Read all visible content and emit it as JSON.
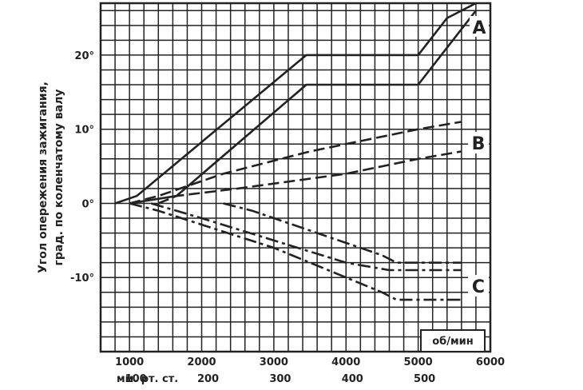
{
  "chart_data": {
    "type": "line",
    "ylabel": [
      "Угол опережения зажигания,",
      "град. по коленчатому валу"
    ],
    "xlim": [
      600,
      6000
    ],
    "ylim": [
      -20,
      27
    ],
    "x_unit": "об/мин",
    "x_ticks": [
      "1000",
      "2000",
      "3000",
      "4000",
      "5000",
      "6000"
    ],
    "x_tick_values": [
      1000,
      2000,
      3000,
      4000,
      5000,
      6000
    ],
    "x2_prefix": "мм. рт. ст.",
    "x2_ticks": [
      "100",
      "200",
      "300",
      "400",
      "500"
    ],
    "x2_tick_values": [
      1000,
      2000,
      3000,
      4000,
      5000
    ],
    "y_ticks": [
      "20°",
      "10°",
      "0°",
      "-10°"
    ],
    "y_tick_values": [
      20,
      10,
      0,
      -10
    ],
    "grid": true,
    "series": [
      {
        "name": "A",
        "style": "solid",
        "x": [
          800,
          1100,
          3450,
          5000,
          5400,
          5800
        ],
        "y": [
          0,
          1,
          20,
          20,
          25,
          27
        ]
      },
      {
        "name": "A",
        "style": "solid",
        "x": [
          1000,
          1650,
          3450,
          5000,
          5800
        ],
        "y": [
          0,
          1,
          16,
          16,
          26
        ]
      },
      {
        "name": "B",
        "style": "dashed",
        "x": [
          1000,
          1400,
          2300,
          3500,
          5000,
          5600
        ],
        "y": [
          0,
          1,
          4,
          7,
          10,
          11
        ]
      },
      {
        "name": "B",
        "style": "dashed",
        "x": [
          1400,
          1650,
          2500,
          4000,
          5000,
          5600
        ],
        "y": [
          0,
          1,
          2,
          4,
          6,
          7
        ]
      },
      {
        "name": "C",
        "style": "dash-dot",
        "x": [
          1300,
          2000,
          4000,
          4600,
          5600
        ],
        "y": [
          0,
          -2,
          -8,
          -9,
          -9
        ]
      },
      {
        "name": "C",
        "style": "dash-dot",
        "x": [
          2300,
          2700,
          4500,
          4700,
          5600
        ],
        "y": [
          0,
          -1,
          -7,
          -8,
          -8
        ]
      },
      {
        "name": "C",
        "style": "dash-dot",
        "x": [
          1000,
          1400,
          3000,
          4000,
          4500,
          4700,
          5600
        ],
        "y": [
          0,
          -1,
          -6,
          -10,
          -12,
          -13,
          -13
        ]
      }
    ]
  }
}
